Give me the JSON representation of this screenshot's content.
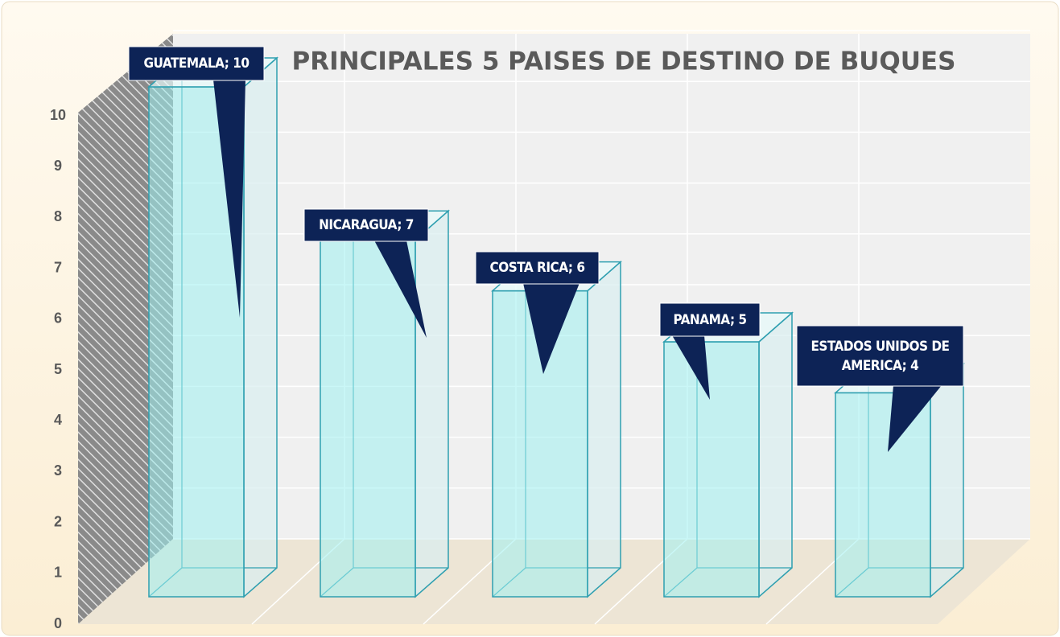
{
  "chart_data": {
    "type": "bar3d",
    "title": "PRINCIPALES 5 PAISES DE DESTINO DE BUQUES",
    "values": [
      10,
      7,
      6,
      5,
      4
    ],
    "value_labels": [
      "GUATEMALA; 10",
      "NICARAGUA; 7",
      "COSTA RICA; 6",
      "PANAMA; 5",
      "ESTADOS UNIDOS DE AMERICA; 4"
    ],
    "color": "#9ff0f0",
    "ylim": [
      0,
      10
    ],
    "yticks": [
      0,
      1,
      2,
      3,
      4,
      5,
      6,
      7,
      8,
      9,
      10
    ],
    "grid": true
  }
}
